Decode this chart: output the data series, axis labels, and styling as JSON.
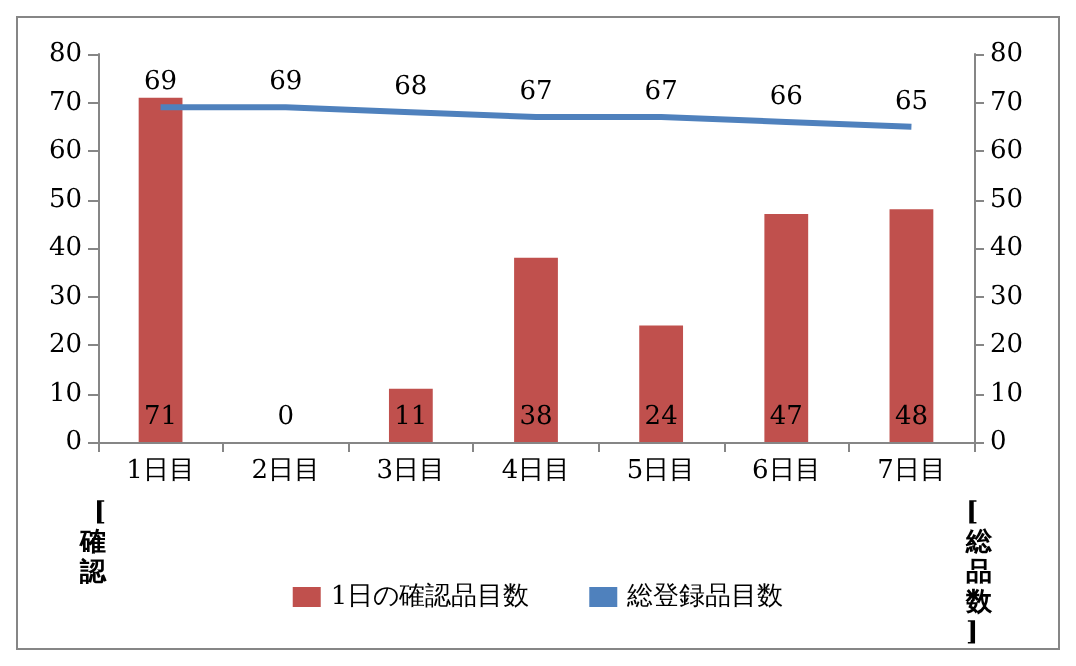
{
  "chart_data": {
    "type": "bar",
    "ylabel": "[確認",
    "y2label": "[総品数]",
    "categories": [
      "1日目",
      "2日目",
      "3日目",
      "4日目",
      "5日目",
      "6日目",
      "7日目"
    ],
    "series": [
      {
        "name": "1日の確認品目数",
        "color": "#c0504d",
        "values": [
          71,
          0,
          11,
          38,
          24,
          47,
          48
        ]
      },
      {
        "name": "総登録品目数",
        "type": "line",
        "axis": "y2",
        "color": "#4f81bd",
        "values": [
          69,
          69,
          68,
          67,
          67,
          66,
          65
        ]
      }
    ],
    "ylim": [
      0,
      80
    ],
    "yticks": [
      0,
      10,
      20,
      30,
      40,
      50,
      60,
      70,
      80
    ],
    "y2lim": [
      0,
      80
    ],
    "y2ticks": [
      0,
      10,
      20,
      30,
      40,
      50,
      60,
      70,
      80
    ],
    "data_labels": true,
    "legend": "bottom",
    "marker": "none",
    "grid": false
  }
}
